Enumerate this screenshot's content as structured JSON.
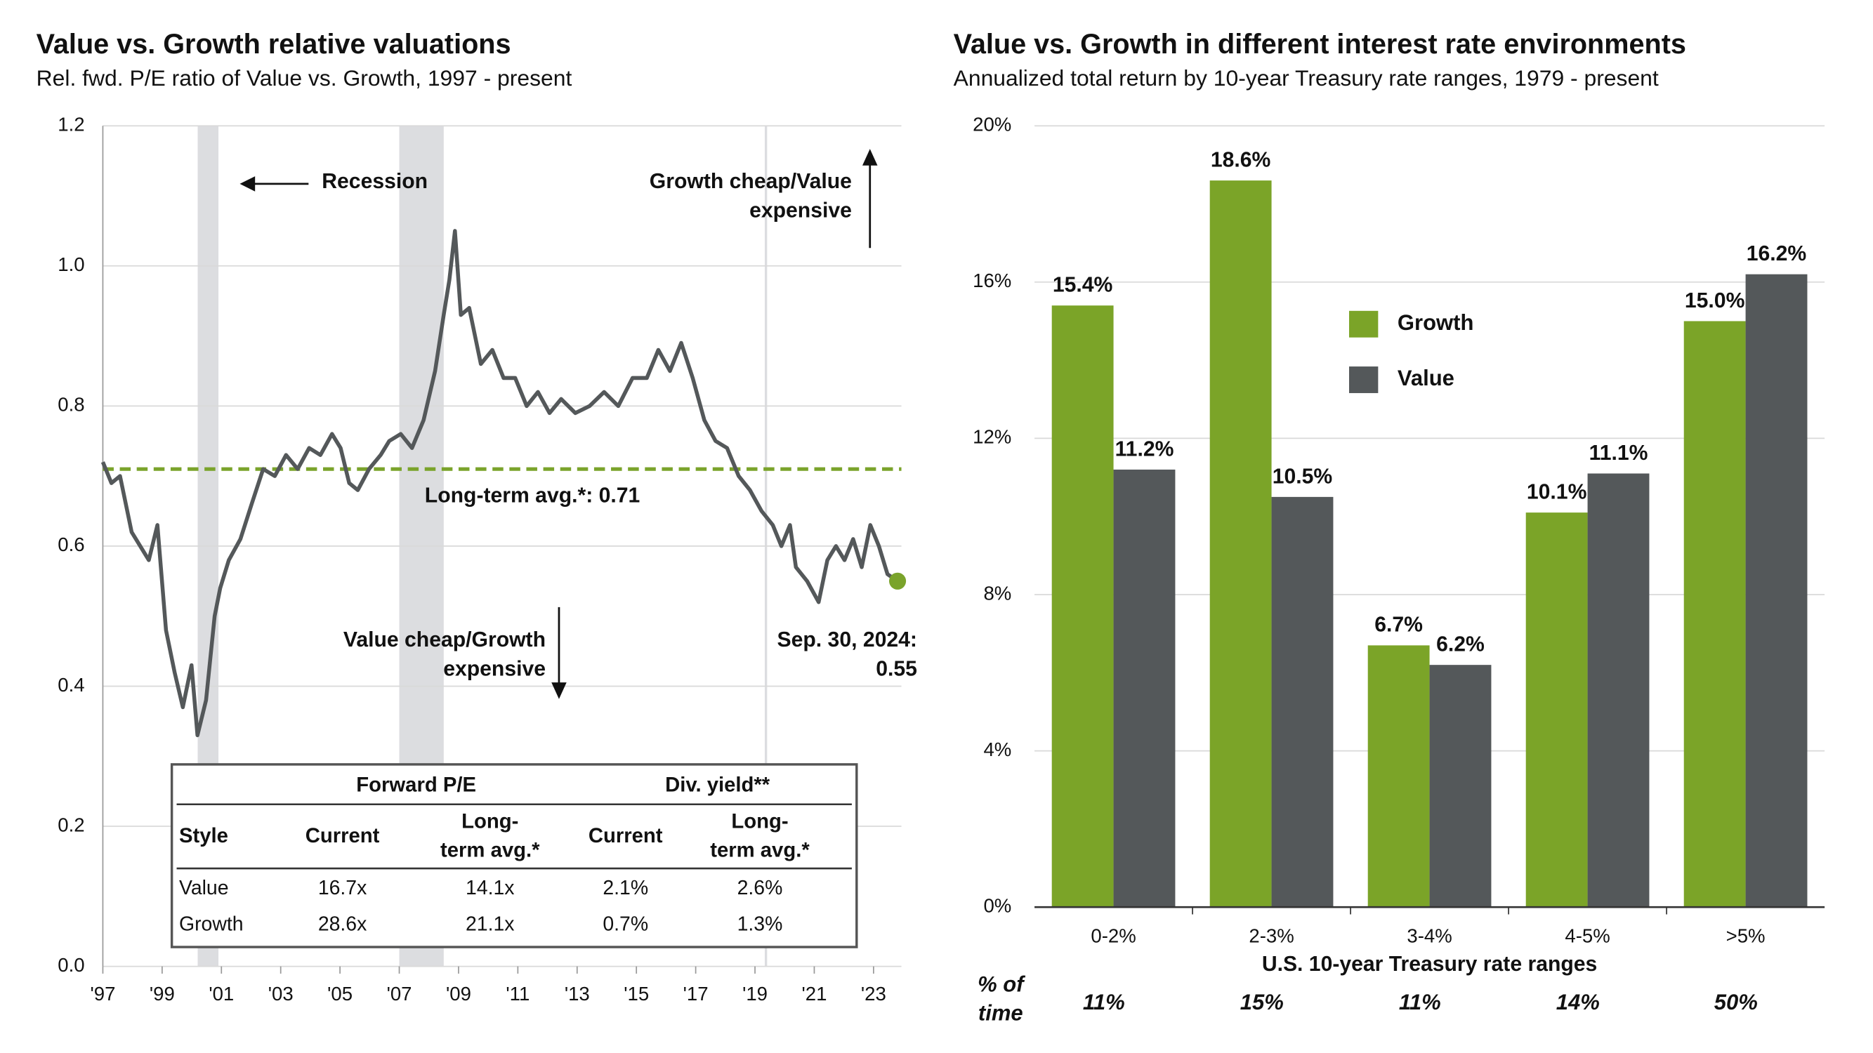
{
  "chart_data": [
    {
      "type": "line",
      "title": "Value vs. Growth relative valuations",
      "subtitle": "Rel. fwd. P/E ratio of Value vs. Growth, 1997 - present",
      "color": "#54585a",
      "marker_color": "#7aa32b",
      "x": [
        1997,
        1997.29,
        1997.58,
        1997.97,
        1998.26,
        1998.55,
        1998.84,
        1999.13,
        1999.42,
        1999.7,
        1999.99,
        2000.19,
        2000.48,
        2000.77,
        2000.96,
        2001.25,
        2001.64,
        2002.02,
        2002.41,
        2002.8,
        2003.18,
        2003.57,
        2003.96,
        2004.34,
        2004.73,
        2005.02,
        2005.31,
        2005.6,
        2005.98,
        2006.37,
        2006.66,
        2007.05,
        2007.43,
        2007.82,
        2008.21,
        2008.5,
        2008.69,
        2008.88,
        2009.08,
        2009.36,
        2009.75,
        2010.14,
        2010.52,
        2010.91,
        2011.3,
        2011.68,
        2012.07,
        2012.46,
        2012.94,
        2013.42,
        2013.91,
        2014.39,
        2014.87,
        2015.35,
        2015.74,
        2016.13,
        2016.51,
        2016.9,
        2017.29,
        2017.67,
        2018.06,
        2018.45,
        2018.83,
        2019.22,
        2019.6,
        2019.89,
        2020.18,
        2020.38,
        2020.76,
        2021.15,
        2021.44,
        2021.73,
        2022.02,
        2022.31,
        2022.6,
        2022.89,
        2023.18,
        2023.47,
        2023.81
      ],
      "values": [
        0.72,
        0.69,
        0.7,
        0.62,
        0.6,
        0.58,
        0.63,
        0.48,
        0.42,
        0.37,
        0.43,
        0.33,
        0.38,
        0.5,
        0.54,
        0.58,
        0.61,
        0.66,
        0.71,
        0.7,
        0.73,
        0.71,
        0.74,
        0.73,
        0.76,
        0.74,
        0.69,
        0.68,
        0.71,
        0.73,
        0.75,
        0.76,
        0.74,
        0.78,
        0.85,
        0.93,
        0.98,
        1.05,
        0.93,
        0.94,
        0.86,
        0.88,
        0.84,
        0.84,
        0.8,
        0.82,
        0.79,
        0.81,
        0.79,
        0.8,
        0.82,
        0.8,
        0.84,
        0.84,
        0.88,
        0.85,
        0.89,
        0.84,
        0.78,
        0.75,
        0.74,
        0.7,
        0.68,
        0.65,
        0.63,
        0.6,
        0.63,
        0.57,
        0.55,
        0.52,
        0.58,
        0.6,
        0.58,
        0.61,
        0.57,
        0.63,
        0.6,
        0.56,
        0.55
      ],
      "xlim": [
        1997,
        2023.94
      ],
      "xticks": [
        {
          "value": 1997,
          "label": "'97"
        },
        {
          "value": 1999,
          "label": "'99"
        },
        {
          "value": 2001,
          "label": "'01"
        },
        {
          "value": 2003,
          "label": "'03"
        },
        {
          "value": 2005,
          "label": "'05"
        },
        {
          "value": 2007,
          "label": "'07"
        },
        {
          "value": 2009,
          "label": "'09"
        },
        {
          "value": 2011,
          "label": "'11"
        },
        {
          "value": 2013,
          "label": "'13"
        },
        {
          "value": 2015,
          "label": "'15"
        },
        {
          "value": 2017,
          "label": "'17"
        },
        {
          "value": 2019,
          "label": "'19"
        },
        {
          "value": 2021,
          "label": "'21"
        },
        {
          "value": 2023,
          "label": "'23"
        }
      ],
      "ylim": [
        0,
        1.2
      ],
      "yticks": [
        {
          "value": 0,
          "label": "0.0"
        },
        0.2,
        0.4,
        0.6,
        0.8,
        {
          "value": 1,
          "label": "1.0"
        },
        1.2
      ],
      "grid": true,
      "recessions": [
        [
          2000.2,
          2000.9
        ],
        [
          2007.0,
          2008.5
        ],
        [
          2019.33,
          2019.41
        ]
      ],
      "average": {
        "value": 0.71,
        "label": "Long-term avg.*:  0.71",
        "color": "#7aa32b"
      },
      "annotations": {
        "recession": "Recession",
        "growth_cheap": [
          "Growth cheap/Value",
          "expensive"
        ],
        "value_cheap": [
          "Value cheap/Growth",
          "expensive"
        ],
        "end_label": [
          "Sep. 30, 2024:",
          "0.55"
        ]
      },
      "table": {
        "group_headers": [
          "Forward P/E",
          "Div. yield**"
        ],
        "columns": [
          [
            "Style"
          ],
          [
            "Current"
          ],
          [
            "Long-",
            "term avg.*"
          ],
          [
            "Current"
          ],
          [
            "Long-",
            "term avg.*"
          ]
        ],
        "rows": [
          [
            "Value",
            "16.7x",
            "14.1x",
            "2.1%",
            "2.6%"
          ],
          [
            "Growth",
            "28.6x",
            "21.1x",
            "0.7%",
            "1.3%"
          ]
        ]
      }
    },
    {
      "type": "bar",
      "title": "Value vs. Growth in different interest rate environments",
      "subtitle": "Annualized total return by 10-year Treasury rate ranges, 1979 - present",
      "x_label": "U.S. 10-year Treasury rate ranges",
      "categories": [
        "0-2%",
        "2-3%",
        "3-4%",
        "4-5%",
        ">5%"
      ],
      "series": [
        {
          "name": "Growth",
          "color": "#7ba428",
          "values": [
            15.4,
            18.6,
            6.7,
            10.1,
            15.0
          ],
          "value_labels": [
            "15.4%",
            "18.6%",
            "6.7%",
            "10.1%",
            "15.0%"
          ]
        },
        {
          "name": "Value",
          "color": "#54585a",
          "values": [
            11.2,
            10.5,
            6.2,
            11.1,
            16.2
          ],
          "value_labels": [
            "11.2%",
            "10.5%",
            "6.2%",
            "11.1%",
            "16.2%"
          ]
        }
      ],
      "ylim": [
        0,
        20
      ],
      "yticks": [
        {
          "value": 0,
          "label": "0%"
        },
        {
          "value": 4,
          "label": "4%"
        },
        {
          "value": 8,
          "label": "8%"
        },
        {
          "value": 12,
          "label": "12%"
        },
        {
          "value": 16,
          "label": "16%"
        },
        {
          "value": 20,
          "label": "20%"
        }
      ],
      "grid": true,
      "time_share": {
        "label": [
          "% of",
          "time"
        ],
        "values": [
          11,
          15,
          11,
          14,
          50
        ],
        "value_labels": [
          "11%",
          "15%",
          "11%",
          "14%",
          "50%"
        ]
      }
    }
  ]
}
